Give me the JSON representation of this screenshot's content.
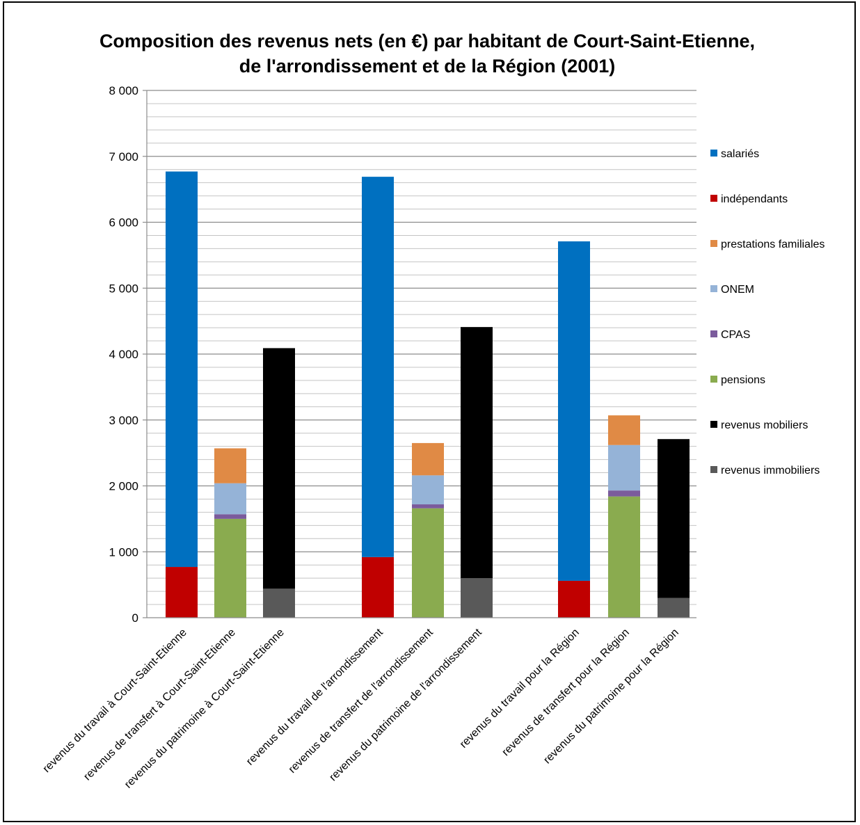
{
  "chart_data": {
    "type": "bar",
    "stacked": true,
    "title": "Composition des revenus nets (en €) par habitant de Court-Saint-Etienne, de l'arrondissement et de la Région (2001)",
    "title_lines": [
      "Composition des revenus nets (en €) par habitant de Court-Saint-Etienne,",
      "de l'arrondissement et de la Région (2001)"
    ],
    "ylim": [
      0,
      8000
    ],
    "yticks": [
      0,
      1000,
      2000,
      3000,
      4000,
      5000,
      6000,
      7000,
      8000
    ],
    "ytick_labels": [
      "0",
      "1 000",
      "2 000",
      "3 000",
      "4 000",
      "5 000",
      "6 000",
      "7 000",
      "8 000"
    ],
    "grid": true,
    "legend_position": "right",
    "categories": [
      "revenus du travail à Court-Saint-Etienne",
      "revenus de transfert à Court-Saint-Etienne",
      "revenus du patrimoine à Court-Saint-Etienne",
      "revenus du travail de l'arrondissement",
      "revenus de transfert de l'arrondissement",
      "revenus du patrimoine de l'arrondissement",
      "revenus du travail pour la Région",
      "revenus de transfert pour la Région",
      "revenus du patrimoine pour la Région"
    ],
    "series": [
      {
        "name": "salariés",
        "color": "#0070C0",
        "values": [
          6000,
          0,
          0,
          5770,
          0,
          0,
          5150,
          0,
          0
        ]
      },
      {
        "name": "indépendants",
        "color": "#C00000",
        "values": [
          770,
          0,
          0,
          920,
          0,
          0,
          560,
          0,
          0
        ]
      },
      {
        "name": "prestations familiales",
        "color": "#E08A45",
        "values": [
          0,
          530,
          0,
          0,
          490,
          0,
          0,
          450,
          0
        ]
      },
      {
        "name": "ONEM",
        "color": "#95B3D7",
        "values": [
          0,
          470,
          0,
          0,
          440,
          0,
          0,
          690,
          0
        ]
      },
      {
        "name": "CPAS",
        "color": "#7B5B9C",
        "values": [
          0,
          70,
          0,
          0,
          60,
          0,
          0,
          90,
          0
        ]
      },
      {
        "name": "pensions",
        "color": "#8AAB4F",
        "values": [
          0,
          1500,
          0,
          0,
          1660,
          0,
          0,
          1840,
          0
        ]
      },
      {
        "name": "revenus mobiliers",
        "color": "#000000",
        "values": [
          0,
          0,
          3650,
          0,
          0,
          3810,
          0,
          0,
          2410
        ]
      },
      {
        "name": "revenus immobiliers",
        "color": "#595959",
        "values": [
          0,
          0,
          440,
          0,
          0,
          600,
          0,
          0,
          300
        ]
      }
    ]
  }
}
